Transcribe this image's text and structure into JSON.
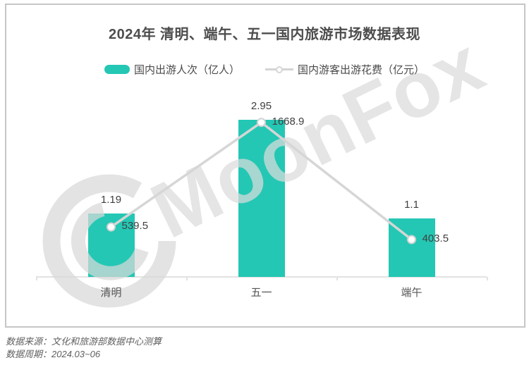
{
  "title": "2024年 清明、端午、五一国内旅游市场数据表现",
  "legend": {
    "bar_label": "国内出游人次（亿人）",
    "line_label": "国内游客出游花费（亿元）"
  },
  "chart_data": {
    "type": "bar+line",
    "categories": [
      "清明",
      "五一",
      "端午"
    ],
    "series": [
      {
        "name": "国内出游人次（亿人）",
        "type": "bar",
        "color": "#24c7b4",
        "values": [
          1.19,
          2.95,
          1.1
        ]
      },
      {
        "name": "国内游客出游花费（亿元）",
        "type": "line",
        "color": "#d6d6d6",
        "marker": "white-circle",
        "values": [
          539.5,
          1668.9,
          403.5
        ]
      }
    ],
    "title": "2024年 清明、端午、五一国内旅游市场数据表现",
    "xlabel": "",
    "ylabel": "",
    "value_labels": true,
    "grid": false,
    "legend_position": "top",
    "axis_ticks": "category-boundaries"
  },
  "watermark": {
    "text": "MoonFox",
    "logo": "moonfox-crescent-logo"
  },
  "footer": {
    "source": "数据来源：文化和旅游部数据中心测算",
    "period": "数据周期：2024.03~06"
  },
  "colors": {
    "bar": "#24c7b4",
    "line": "#d6d6d6",
    "marker_fill": "#ffffff",
    "marker_border": "#d2d2d2",
    "title_text": "#4d4d4d",
    "label_text": "#3f3f3f",
    "category_text": "#555555",
    "axis": "#e2e2e2",
    "frame_border": "#c6c6c6",
    "footer_text": "#5f5f5f",
    "watermark": "#dcdcdc"
  }
}
